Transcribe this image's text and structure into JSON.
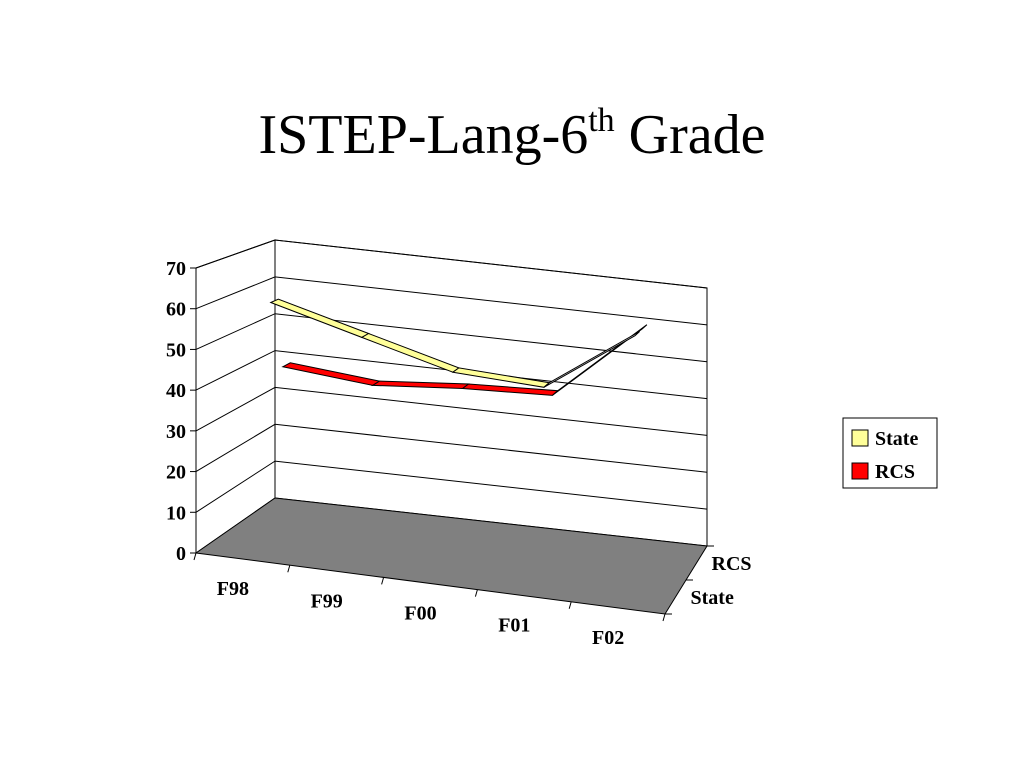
{
  "slide": {
    "title_main": "ISTEP-Lang-6",
    "title_sup": "th",
    "title_end": " Grade"
  },
  "chart_data": {
    "type": "line",
    "style": "3d",
    "categories": [
      "F98",
      "F99",
      "F00",
      "F01",
      "F02"
    ],
    "depth_categories": [
      "RCS",
      "State"
    ],
    "y_ticks": [
      0,
      10,
      20,
      30,
      40,
      50,
      60,
      70
    ],
    "ylim": [
      0,
      70
    ],
    "grid": true,
    "legend_position": "right",
    "series": [
      {
        "name": "State",
        "values": [
          60,
          54,
          48,
          47,
          63
        ],
        "color": "#FFFF99"
      },
      {
        "name": "RCS",
        "values": [
          42,
          40,
          42,
          43,
          63
        ],
        "color": "#FF0000"
      }
    ],
    "floor_color": "#808080"
  }
}
